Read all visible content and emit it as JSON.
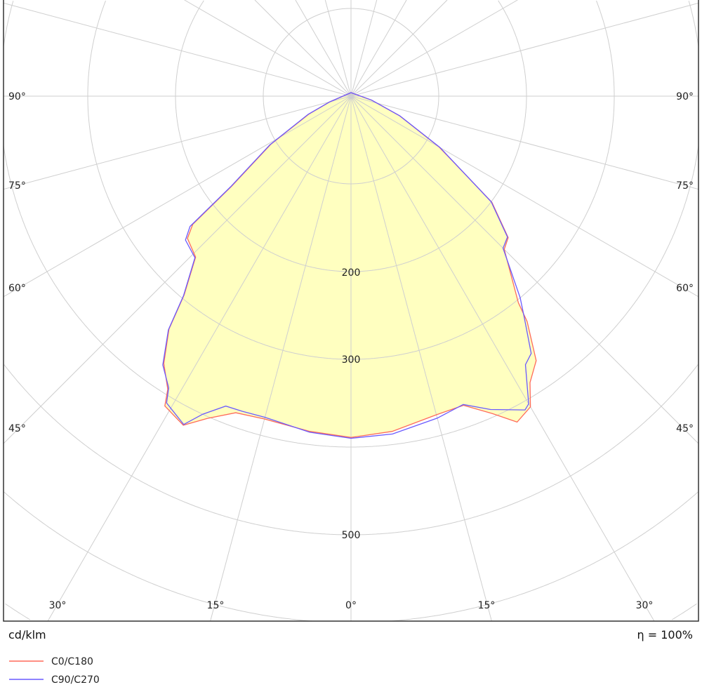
{
  "chart_data": {
    "type": "polar",
    "unit_label": "cd/klm",
    "efficiency_label": "η = 100%",
    "radial_ticks": [
      100,
      200,
      300,
      400,
      500,
      600,
      700
    ],
    "radial_tick_labels": [
      "200",
      "300",
      "500"
    ],
    "radial_tick_label_values": [
      200,
      300,
      500
    ],
    "side_angle_labels": [
      "90°",
      "75°",
      "60°",
      "45°"
    ],
    "bottom_angle_labels": [
      "30°",
      "15°",
      "0°",
      "15°",
      "30°"
    ],
    "angle_step_deg": 15,
    "fill_color": "#ffffc0",
    "grid": true,
    "legend_placement": "bottom-left",
    "series": [
      {
        "name": "C0/C180",
        "color": "#ff6a5a",
        "points": [
          [
            -180,
            4
          ],
          [
            -75,
            25
          ],
          [
            -67,
            52
          ],
          [
            -59,
            107
          ],
          [
            -53,
            170
          ],
          [
            -51,
            232
          ],
          [
            -49,
            247
          ],
          [
            -44,
            255
          ],
          [
            -40,
            296
          ],
          [
            -38,
            337
          ],
          [
            -35,
            372
          ],
          [
            -32,
            394
          ],
          [
            -31,
            412
          ],
          [
            -27,
            421
          ],
          [
            -24,
            402
          ],
          [
            -20,
            384
          ],
          [
            -15,
            381
          ],
          [
            -7,
            385
          ],
          [
            0,
            389
          ],
          [
            7,
            385
          ],
          [
            15,
            376
          ],
          [
            20,
            375
          ],
          [
            24,
            396
          ],
          [
            27,
            417
          ],
          [
            30,
            409
          ],
          [
            32,
            385
          ],
          [
            35,
            368
          ],
          [
            38,
            326
          ],
          [
            39,
            303
          ],
          [
            45,
            247
          ],
          [
            48,
            241
          ],
          [
            53,
            201
          ],
          [
            60,
            116
          ],
          [
            68,
            60
          ],
          [
            79,
            24
          ],
          [
            180,
            4
          ]
        ]
      },
      {
        "name": "C90/C270",
        "color": "#6a5aff",
        "points": [
          [
            -180,
            4
          ],
          [
            -75,
            25
          ],
          [
            -67,
            53
          ],
          [
            -59,
            108
          ],
          [
            -53,
            172
          ],
          [
            -51,
            236
          ],
          [
            -49,
            250
          ],
          [
            -44,
            256
          ],
          [
            -40,
            297
          ],
          [
            -38,
            338
          ],
          [
            -35,
            374
          ],
          [
            -32,
            392
          ],
          [
            -31,
            408
          ],
          [
            -27,
            420
          ],
          [
            -25,
            400
          ],
          [
            -22,
            381
          ],
          [
            -19,
            380
          ],
          [
            -15,
            379
          ],
          [
            -7,
            386
          ],
          [
            0,
            390
          ],
          [
            7,
            388
          ],
          [
            15,
            380
          ],
          [
            20,
            374
          ],
          [
            24,
            391
          ],
          [
            29,
            409
          ],
          [
            30,
            405
          ],
          [
            33,
            365
          ],
          [
            35,
            358
          ],
          [
            38,
            321
          ],
          [
            40,
            300
          ],
          [
            45,
            245
          ],
          [
            48,
            240
          ],
          [
            53,
            200
          ],
          [
            60,
            117
          ],
          [
            68,
            60
          ],
          [
            79,
            24
          ],
          [
            180,
            4
          ]
        ]
      }
    ]
  }
}
